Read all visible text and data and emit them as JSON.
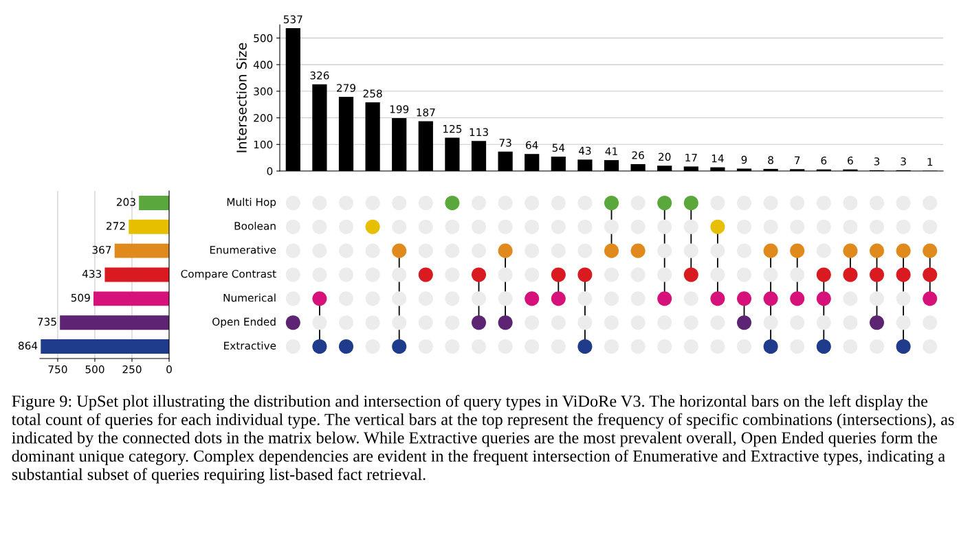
{
  "chart_data": [
    {
      "type": "bar",
      "categories": [
        null,
        null,
        null,
        null,
        null,
        null,
        null,
        null,
        null,
        null,
        null,
        null,
        null,
        null,
        null,
        null,
        null,
        null,
        null,
        null,
        null,
        null,
        null,
        null,
        null
      ],
      "values": [
        537,
        326,
        279,
        258,
        199,
        187,
        125,
        113,
        73,
        64,
        54,
        43,
        41,
        26,
        20,
        17,
        14,
        9,
        8,
        7,
        6,
        6,
        3,
        3,
        1
      ],
      "color": "#000000",
      "ylabel": "Intersection Size",
      "ylim": [
        0,
        550
      ],
      "yticks": [
        0,
        100,
        200,
        300,
        400,
        500
      ],
      "grid": "y",
      "data_labels": true,
      "annotations": [
        "Figure 9: UpSet plot illustrating the distribution and intersection of query types in ViDoRe V3. The horizontal bars on the left display the total count of queries for each individual type. The vertical bars at the top represent the frequency of specific combinations (intersections), as indicated by the connected dots in the matrix below. While Extractive queries are the most prevalent overall, Open Ended queries form the dominant unique category. Complex dependencies are evident in the frequent intersection of Enumerative and Extractive types, indicating a substantial subset of queries requiring list-based fact retrieval."
      ]
    },
    {
      "type": "bar",
      "orientation": "horizontal",
      "categories": [
        "Multi Hop",
        "Boolean",
        "Enumerative",
        "Compare Contrast",
        "Numerical",
        "Open Ended",
        "Extractive"
      ],
      "values": [
        203,
        272,
        367,
        433,
        509,
        735,
        864
      ],
      "colors": [
        "#5aa83c",
        "#e6c000",
        "#e08a1e",
        "#d91a20",
        "#d6127a",
        "#5c2472",
        "#1f3c8c"
      ],
      "xlim": [
        870,
        0
      ],
      "xticks": [
        0,
        250,
        500,
        750
      ],
      "grid": "x",
      "data_labels": true
    },
    {
      "type": "other",
      "categories": [
        null,
        null,
        null,
        null,
        null,
        null,
        null,
        null,
        null,
        null,
        null,
        null,
        null,
        null,
        null,
        null,
        null,
        null,
        null,
        null,
        null,
        null,
        null,
        null,
        null
      ],
      "colors": [
        "#5aa83c",
        "#e6c000",
        "#e08a1e",
        "#d91a20",
        "#d6127a",
        "#5c2472",
        "#1f3c8c"
      ],
      "cells": [
        [
          false,
          false,
          false,
          false,
          false,
          false,
          true,
          false,
          false,
          false,
          false,
          false,
          true,
          false,
          true,
          true,
          false,
          false,
          false,
          false,
          false,
          false,
          false,
          false,
          false
        ],
        [
          false,
          false,
          false,
          true,
          false,
          false,
          false,
          false,
          false,
          false,
          false,
          false,
          false,
          false,
          false,
          false,
          true,
          false,
          false,
          false,
          false,
          false,
          false,
          false,
          false
        ],
        [
          false,
          false,
          false,
          false,
          true,
          false,
          false,
          false,
          true,
          false,
          false,
          false,
          true,
          true,
          false,
          false,
          false,
          false,
          true,
          true,
          false,
          true,
          true,
          true,
          true
        ],
        [
          false,
          false,
          false,
          false,
          false,
          true,
          false,
          true,
          false,
          false,
          true,
          true,
          false,
          false,
          false,
          true,
          false,
          false,
          false,
          false,
          true,
          true,
          true,
          true,
          true
        ],
        [
          false,
          true,
          false,
          false,
          false,
          false,
          false,
          false,
          false,
          true,
          true,
          false,
          false,
          false,
          true,
          false,
          true,
          true,
          true,
          true,
          true,
          false,
          false,
          false,
          true
        ],
        [
          true,
          false,
          false,
          false,
          false,
          false,
          false,
          true,
          true,
          false,
          false,
          false,
          false,
          false,
          false,
          false,
          false,
          true,
          false,
          false,
          false,
          false,
          true,
          false,
          false
        ],
        [
          false,
          true,
          true,
          false,
          true,
          false,
          false,
          false,
          false,
          false,
          false,
          true,
          false,
          false,
          false,
          false,
          false,
          false,
          true,
          false,
          true,
          false,
          false,
          true,
          false
        ]
      ]
    }
  ]
}
